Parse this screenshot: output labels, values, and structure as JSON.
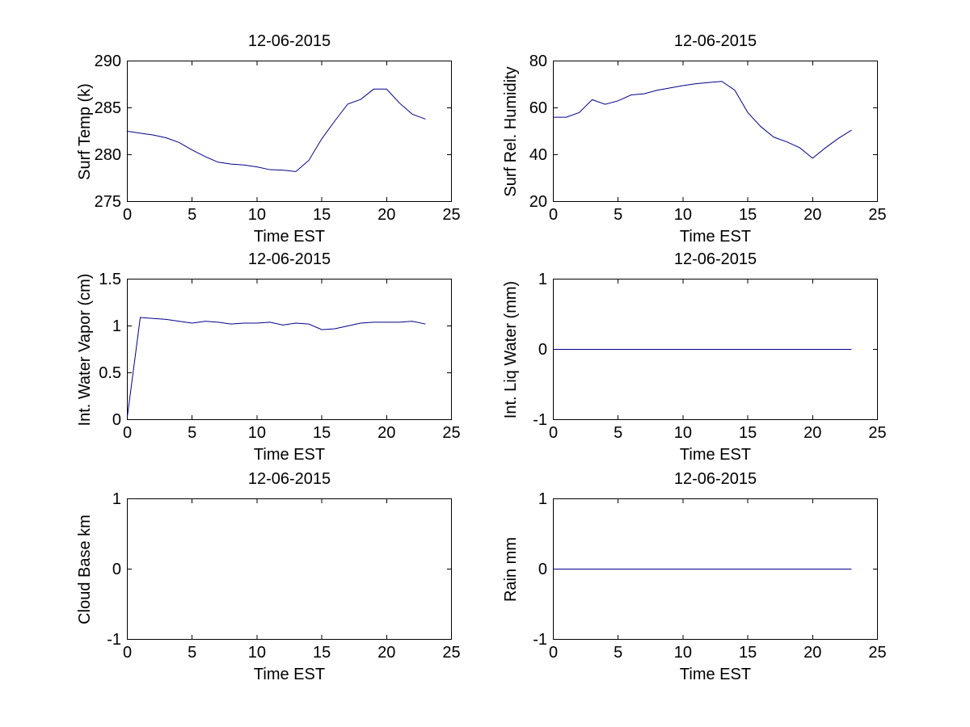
{
  "figure": {
    "background": "#ffffff",
    "line_color": "#00008b",
    "axis_color": "#000000",
    "text_color": "#000000"
  },
  "chart_data": [
    {
      "type": "line",
      "title": "12-06-2015",
      "xlabel": "Time EST",
      "ylabel": "Surf Temp (k)",
      "xlim": [
        0,
        25
      ],
      "ylim": [
        275,
        290
      ],
      "xticks": [
        0,
        5,
        10,
        15,
        20,
        25
      ],
      "yticks": [
        275,
        280,
        285,
        290
      ],
      "grid": false,
      "legend": null,
      "x": [
        0,
        1,
        2,
        3,
        4,
        5,
        6,
        7,
        8,
        9,
        10,
        11,
        12,
        13,
        14,
        15,
        16,
        17,
        18,
        19,
        20,
        21,
        22,
        23
      ],
      "y": [
        282.5,
        282.3,
        282.1,
        281.8,
        281.3,
        280.5,
        279.8,
        279.2,
        279.0,
        278.9,
        278.7,
        278.4,
        278.35,
        278.2,
        279.4,
        281.7,
        283.6,
        285.4,
        285.9,
        287.0,
        287.0,
        285.5,
        284.3,
        283.8
      ]
    },
    {
      "type": "line",
      "title": "12-06-2015",
      "xlabel": "Time EST",
      "ylabel": "Surf Rel. Humidity",
      "xlim": [
        0,
        25
      ],
      "ylim": [
        20,
        80
      ],
      "xticks": [
        0,
        5,
        10,
        15,
        20,
        25
      ],
      "yticks": [
        20,
        40,
        60,
        80
      ],
      "grid": false,
      "legend": null,
      "x": [
        0,
        1,
        2,
        3,
        4,
        5,
        6,
        7,
        8,
        9,
        10,
        11,
        12,
        13,
        14,
        15,
        16,
        17,
        18,
        19,
        20,
        21,
        22,
        23
      ],
      "y": [
        56,
        56,
        58,
        63.5,
        61.5,
        63,
        65.5,
        66,
        67.5,
        68.5,
        69.5,
        70.3,
        70.8,
        71.3,
        67.5,
        58,
        52,
        47.5,
        45.5,
        43,
        38.5,
        43,
        47,
        50.5
      ]
    },
    {
      "type": "line",
      "title": "12-06-2015",
      "xlabel": "Time EST",
      "ylabel": "Int. Water Vapor (cm)",
      "xlim": [
        0,
        25
      ],
      "ylim": [
        0,
        1.5
      ],
      "xticks": [
        0,
        5,
        10,
        15,
        20,
        25
      ],
      "yticks": [
        0,
        0.5,
        1,
        1.5
      ],
      "grid": false,
      "legend": null,
      "x": [
        0,
        1,
        2,
        3,
        4,
        5,
        6,
        7,
        8,
        9,
        10,
        11,
        12,
        13,
        14,
        15,
        16,
        17,
        18,
        19,
        20,
        21,
        22,
        23
      ],
      "y": [
        0.03,
        1.09,
        1.08,
        1.07,
        1.05,
        1.03,
        1.05,
        1.04,
        1.02,
        1.03,
        1.03,
        1.04,
        1.01,
        1.03,
        1.02,
        0.96,
        0.97,
        1.0,
        1.03,
        1.04,
        1.04,
        1.04,
        1.05,
        1.02
      ]
    },
    {
      "type": "line",
      "title": "12-06-2015",
      "xlabel": "Time EST",
      "ylabel": "Int. Liq Water (mm)",
      "xlim": [
        0,
        25
      ],
      "ylim": [
        -1,
        1
      ],
      "xticks": [
        0,
        5,
        10,
        15,
        20,
        25
      ],
      "yticks": [
        -1,
        0,
        1
      ],
      "grid": false,
      "legend": null,
      "x": [
        0,
        1,
        2,
        3,
        4,
        5,
        6,
        7,
        8,
        9,
        10,
        11,
        12,
        13,
        14,
        15,
        16,
        17,
        18,
        19,
        20,
        21,
        22,
        23
      ],
      "y": [
        0,
        0,
        0,
        0,
        0,
        0,
        0,
        0,
        0,
        0,
        0,
        0,
        0,
        0,
        0,
        0,
        0,
        0,
        0,
        0,
        0,
        0,
        0,
        0
      ]
    },
    {
      "type": "line",
      "title": "12-06-2015",
      "xlabel": "Time EST",
      "ylabel": "Cloud Base km",
      "xlim": [
        0,
        25
      ],
      "ylim": [
        -1,
        1
      ],
      "xticks": [
        0,
        5,
        10,
        15,
        20,
        25
      ],
      "yticks": [
        -1,
        0,
        1
      ],
      "grid": false,
      "legend": null,
      "x": [],
      "y": []
    },
    {
      "type": "line",
      "title": "12-06-2015",
      "xlabel": "Time EST",
      "ylabel": "Rain mm",
      "xlim": [
        0,
        25
      ],
      "ylim": [
        -1,
        1
      ],
      "xticks": [
        0,
        5,
        10,
        15,
        20,
        25
      ],
      "yticks": [
        -1,
        0,
        1
      ],
      "grid": false,
      "legend": null,
      "x": [
        0,
        1,
        2,
        3,
        4,
        5,
        6,
        7,
        8,
        9,
        10,
        11,
        12,
        13,
        14,
        15,
        16,
        17,
        18,
        19,
        20,
        21,
        22,
        23
      ],
      "y": [
        0,
        0,
        0,
        0,
        0,
        0,
        0,
        0,
        0,
        0,
        0,
        0,
        0,
        0,
        0,
        0,
        0,
        0,
        0,
        0,
        0,
        0,
        0,
        0
      ]
    }
  ]
}
